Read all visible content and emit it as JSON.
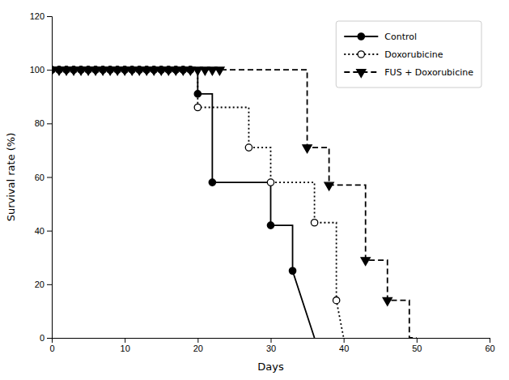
{
  "chart_data": {
    "type": "line",
    "xlabel": "Days",
    "ylabel": "Survival rate (%)",
    "xlim": [
      0,
      60
    ],
    "ylim": [
      0,
      120
    ],
    "xticks": [
      0,
      10,
      20,
      30,
      40,
      50,
      60
    ],
    "yticks": [
      0,
      20,
      40,
      60,
      80,
      100,
      120
    ],
    "grid": false,
    "legend": "upper right",
    "series": [
      {
        "name": "Control",
        "color": "#000000",
        "line_style": "solid",
        "marker": "circle",
        "x": [
          0,
          20,
          20,
          22,
          22,
          30,
          30,
          33,
          33,
          36
        ],
        "values": [
          100,
          100,
          91,
          91,
          58,
          58,
          42,
          42,
          25,
          0
        ],
        "marker_x": [
          0,
          1,
          2,
          3,
          4,
          5,
          6,
          7,
          8,
          9,
          10,
          11,
          12,
          13,
          14,
          15,
          16,
          17,
          18,
          19,
          20,
          22,
          30,
          33
        ],
        "marker_values": [
          100,
          100,
          100,
          100,
          100,
          100,
          100,
          100,
          100,
          100,
          100,
          100,
          100,
          100,
          100,
          100,
          100,
          100,
          100,
          100,
          91,
          58,
          42,
          25
        ]
      },
      {
        "name": "Doxorubicine",
        "color": "#000000",
        "line_style": "dotted",
        "marker": "circle-open",
        "x": [
          0,
          20,
          20,
          27,
          27,
          30,
          30,
          36,
          36,
          39,
          39,
          40
        ],
        "values": [
          100,
          100,
          86,
          86,
          71,
          71,
          58,
          58,
          43,
          43,
          14,
          0
        ],
        "marker_x": [
          0,
          1,
          2,
          3,
          4,
          5,
          6,
          7,
          8,
          9,
          10,
          11,
          12,
          13,
          14,
          15,
          16,
          17,
          18,
          19,
          20,
          27,
          30,
          36,
          39
        ],
        "marker_values": [
          100,
          100,
          100,
          100,
          100,
          100,
          100,
          100,
          100,
          100,
          100,
          100,
          100,
          100,
          100,
          100,
          100,
          100,
          100,
          100,
          86,
          71,
          58,
          43,
          14
        ]
      },
      {
        "name": "FUS + Doxorubicine",
        "color": "#000000",
        "line_style": "dashed",
        "marker": "triangle-down",
        "x": [
          0,
          23,
          23,
          35,
          35,
          38,
          38,
          43,
          43,
          46,
          46,
          49,
          49,
          50
        ],
        "values": [
          100,
          100,
          100,
          100,
          71,
          71,
          57,
          57,
          29,
          29,
          14,
          14,
          0,
          0
        ],
        "marker_x": [
          0,
          1,
          2,
          3,
          4,
          5,
          6,
          7,
          8,
          9,
          10,
          11,
          12,
          13,
          14,
          15,
          16,
          17,
          18,
          19,
          20,
          21,
          22,
          23,
          35,
          38,
          43,
          46
        ],
        "marker_values": [
          100,
          100,
          100,
          100,
          100,
          100,
          100,
          100,
          100,
          100,
          100,
          100,
          100,
          100,
          100,
          100,
          100,
          100,
          100,
          100,
          100,
          100,
          100,
          100,
          71,
          57,
          29,
          14
        ]
      }
    ]
  }
}
